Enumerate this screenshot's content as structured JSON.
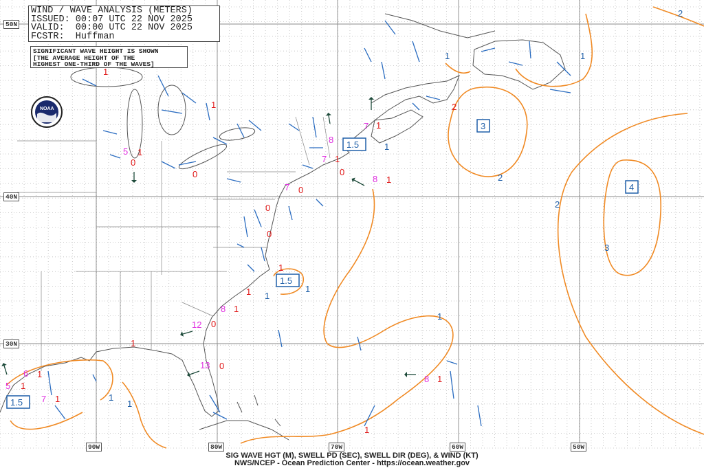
{
  "header": {
    "title": "WIND / WAVE ANALYSIS (METERS)",
    "issued": "ISSUED: 00:07 UTC 22 NOV 2025",
    "valid": "VALID:  00:00 UTC 22 NOV 2025",
    "forecaster": "FCSTR:  Huffman",
    "note_lines": [
      "SIGNIFICANT WAVE HEIGHT IS SHOWN",
      "[THE AVERAGE HEIGHT OF THE",
      "HIGHEST ONE-THIRD OF THE WAVES]"
    ]
  },
  "logo": {
    "text": "NOAA"
  },
  "axes": {
    "latitudes": [
      "50N",
      "40N",
      "30N"
    ],
    "longitudes": [
      "90W",
      "80W",
      "70W",
      "60W",
      "50W"
    ]
  },
  "map": {
    "contour_labels": [
      "2",
      "1",
      "1",
      "2",
      "2",
      "3",
      "1",
      "1",
      "1",
      "1",
      "1",
      "1"
    ],
    "boxed_maxima": [
      "3",
      "4",
      "1.5",
      "1.5",
      "1.5"
    ],
    "wave_heights": [
      "1",
      "1",
      "1",
      "1",
      "0",
      "1",
      "0",
      "0",
      "1",
      "0",
      "0",
      "1",
      "1",
      "1",
      "0",
      "1",
      "0",
      "1",
      "1",
      "1",
      "1",
      "1",
      "2",
      "0"
    ],
    "swell_periods": [
      "5",
      "8",
      "7",
      "7",
      "7",
      "8",
      "8",
      "12",
      "13",
      "6",
      "5",
      "7",
      "8"
    ]
  },
  "colors": {
    "contour": "#f08a24",
    "wind_barb": "#2a6cc0",
    "swell_arrow": "#1d4a3a",
    "wave_height": "#e01818",
    "swell_period": "#e030e0",
    "coastline": "#555555"
  },
  "footer": {
    "line1": "SIG WAVE HGT (M), SWELL PD (SEC), SWELL DIR (DEG), & WIND (KT)",
    "line2": "NWS/NCEP - Ocean Prediction Center - https://ocean.weather.gov"
  }
}
